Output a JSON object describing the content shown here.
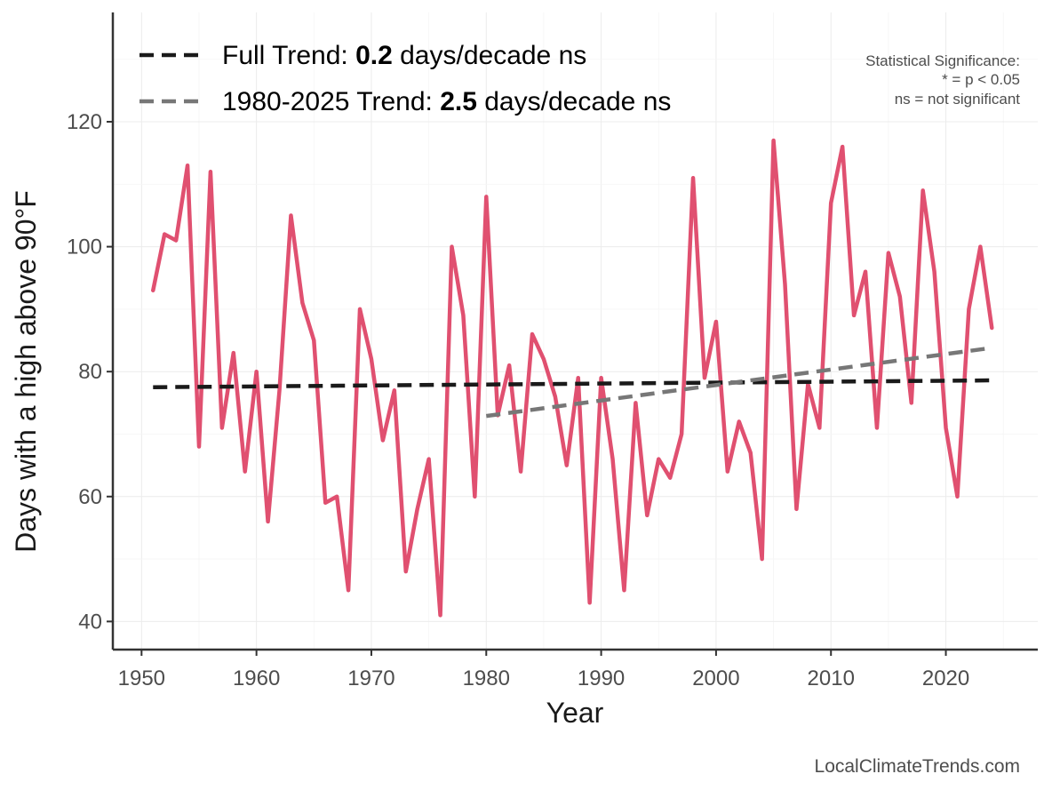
{
  "chart_data": {
    "type": "line",
    "xlabel": "Year",
    "ylabel": "Days with a high above 90°F",
    "xlim": [
      1947.5,
      2028
    ],
    "ylim": [
      35.5,
      137.5
    ],
    "xticks": [
      1950,
      1960,
      1970,
      1980,
      1990,
      2000,
      2010,
      2020
    ],
    "yticks": [
      40,
      60,
      80,
      100,
      120
    ],
    "grid": true,
    "colors": {
      "series": "#e05070",
      "full_trend": "#1a1a1a",
      "recent_trend": "#777777"
    },
    "series": [
      {
        "name": "Days with a high above 90°F",
        "x": [
          1951,
          1952,
          1953,
          1954,
          1955,
          1956,
          1957,
          1958,
          1959,
          1960,
          1961,
          1962,
          1963,
          1964,
          1965,
          1966,
          1967,
          1968,
          1969,
          1970,
          1971,
          1972,
          1973,
          1974,
          1975,
          1976,
          1977,
          1978,
          1979,
          1980,
          1981,
          1982,
          1983,
          1984,
          1985,
          1986,
          1987,
          1988,
          1989,
          1990,
          1991,
          1992,
          1993,
          1994,
          1995,
          1996,
          1997,
          1998,
          1999,
          2000,
          2001,
          2002,
          2003,
          2004,
          2005,
          2006,
          2007,
          2008,
          2009,
          2010,
          2011,
          2012,
          2013,
          2014,
          2015,
          2016,
          2017,
          2018,
          2019,
          2020,
          2021,
          2022,
          2023,
          2024
        ],
        "values": [
          93,
          102,
          101,
          113,
          68,
          112,
          71,
          83,
          64,
          80,
          56,
          77,
          105,
          91,
          85,
          59,
          60,
          45,
          90,
          82,
          69,
          77,
          48,
          58,
          66,
          41,
          100,
          89,
          60,
          108,
          73,
          81,
          64,
          86,
          82,
          76,
          65,
          79,
          43,
          79,
          66,
          45,
          75,
          57,
          66,
          63,
          70,
          111,
          79,
          88,
          64,
          72,
          67,
          50,
          117,
          94,
          58,
          78,
          71,
          107,
          116,
          89,
          96,
          71,
          99,
          92,
          75,
          109,
          96,
          71,
          60,
          90,
          100,
          87
        ]
      }
    ],
    "trends": [
      {
        "name": "Full Trend",
        "x": [
          1951,
          2024
        ],
        "y": [
          77.5,
          78.6
        ]
      },
      {
        "name": "1980-2025 Trend",
        "x": [
          1980,
          2024
        ],
        "y": [
          72.9,
          83.8
        ]
      }
    ],
    "legend": {
      "position": "top-left",
      "items": [
        {
          "prefix": "Full Trend: ",
          "value": "0.2",
          "suffix": " days/decade ns"
        },
        {
          "prefix": "1980-2025 Trend: ",
          "value": "2.5",
          "suffix": " days/decade ns"
        }
      ]
    },
    "annotation": {
      "lines": [
        "Statistical Significance:",
        "* = p < 0.05",
        "ns = not significant"
      ]
    },
    "credit": "LocalClimateTrends.com"
  }
}
